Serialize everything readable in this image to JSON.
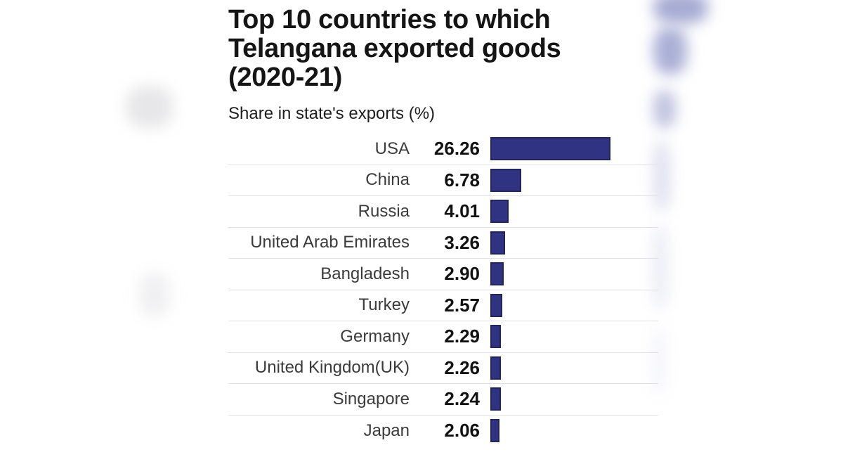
{
  "title_display": "Top 10 countries to which\nTelangana exported goods\n(2020-21)",
  "subtitle": "Share in state's exports (%)",
  "colors": {
    "bar_fill": "#2f3382",
    "bar_border": "#22255c",
    "divider": "#e0e0e6",
    "title_text": "#151515",
    "label_text": "#3b3b3b",
    "value_text": "#121212",
    "background": "#ffffff"
  },
  "chart_data": {
    "type": "bar",
    "orientation": "horizontal",
    "title": "Top 10 countries to which Telangana exported goods (2020-21)",
    "subtitle": "Share in state's exports (%)",
    "xlabel": "",
    "ylabel": "",
    "categories": [
      "USA",
      "China",
      "Russia",
      "United Arab Emirates",
      "Bangladesh",
      "Turkey",
      "Germany",
      "United Kingdom(UK)",
      "Singapore",
      "Japan"
    ],
    "values": [
      26.26,
      6.78,
      4.01,
      3.26,
      2.9,
      2.57,
      2.29,
      2.26,
      2.24,
      2.06
    ],
    "value_labels": [
      "26.26",
      "6.78",
      "4.01",
      "3.26",
      "2.90",
      "2.57",
      "2.29",
      "2.26",
      "2.24",
      "2.06"
    ],
    "xlim": [
      0,
      26.26
    ],
    "grid": false,
    "legend": false,
    "row_dividers": true
  }
}
